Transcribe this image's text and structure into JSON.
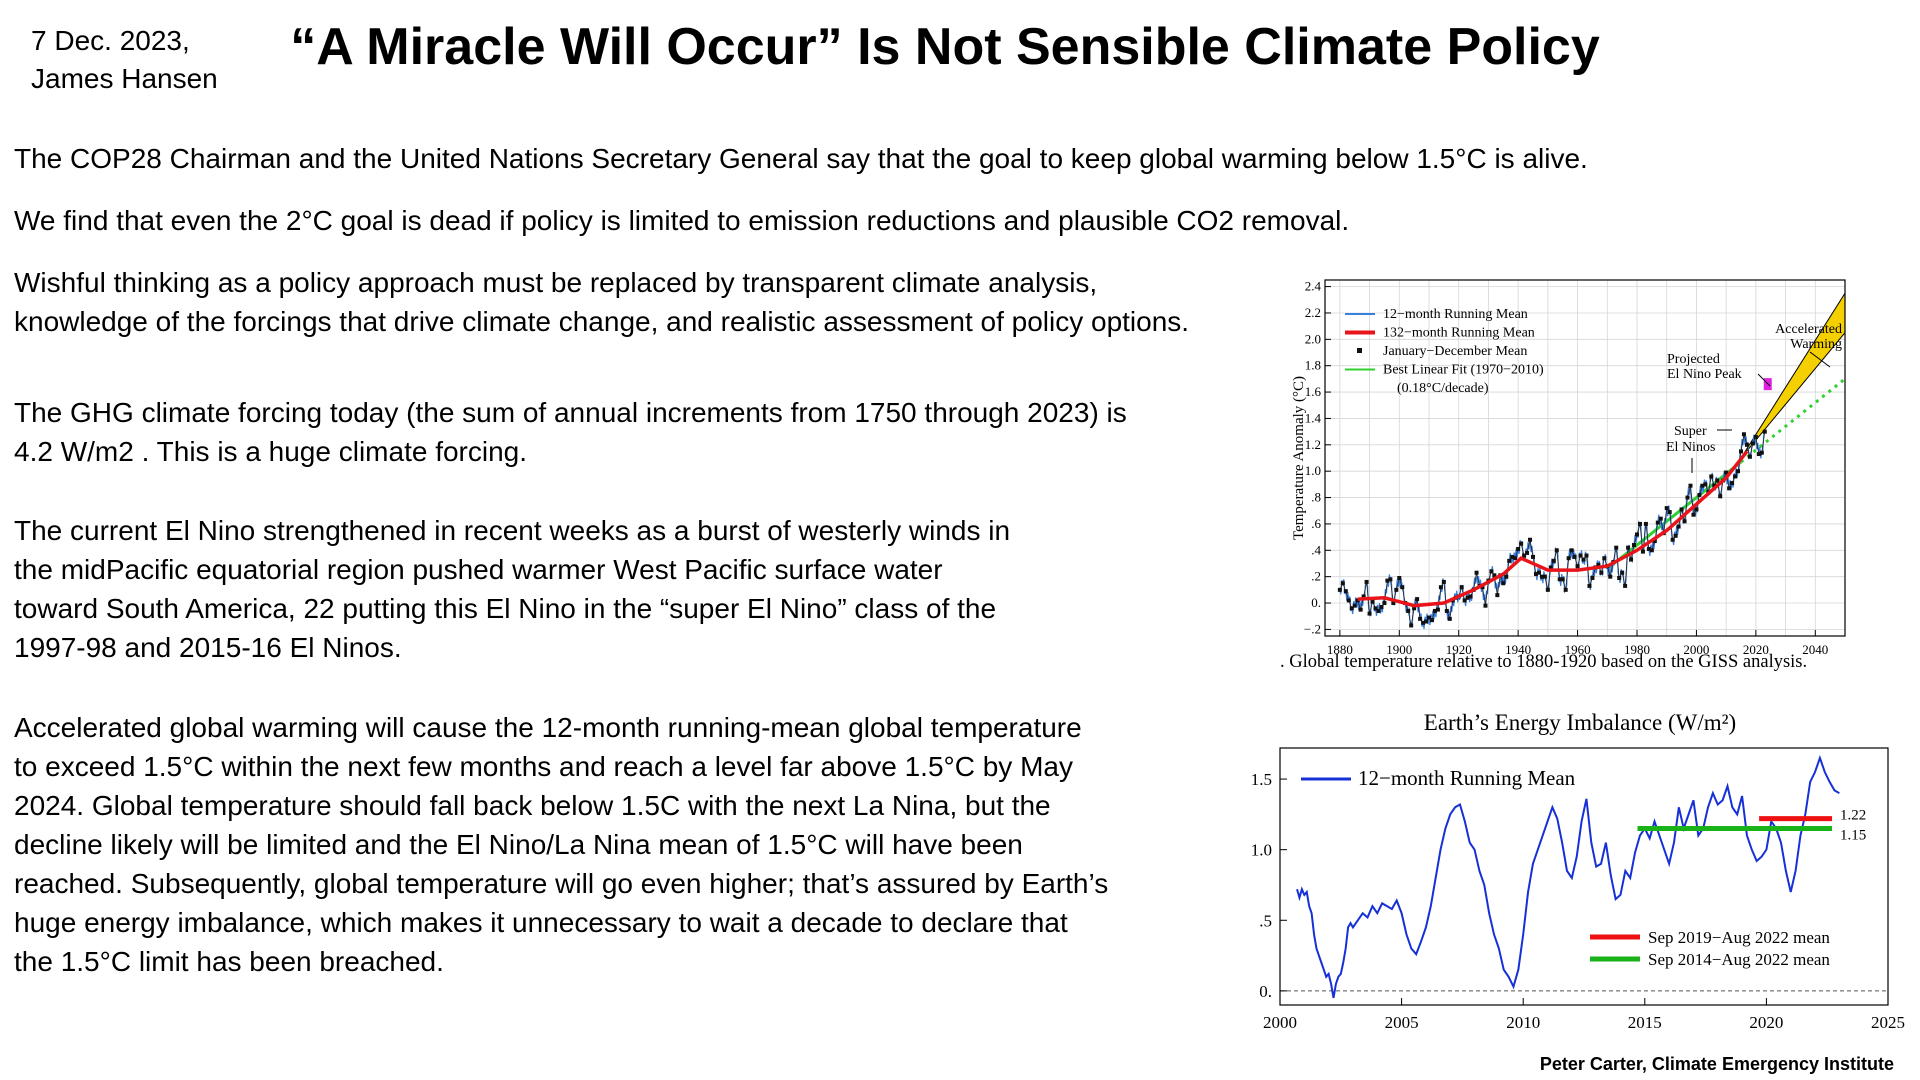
{
  "header": {
    "date": "7 Dec. 2023,",
    "author": "James Hansen",
    "title": "“A Miracle Will Occur” Is Not Sensible Climate Policy"
  },
  "body": {
    "p1": [
      "The COP28 Chairman and the United Nations Secretary General say that the goal to keep global warming below 1.5°C is alive."
    ],
    "p2": [
      "We find that even the 2°C goal is dead if policy is limited to emission reductions and plausible CO2 removal."
    ],
    "p3": [
      "Wishful thinking as a policy approach must be replaced by transparent climate analysis,",
      "knowledge of the forcings that drive climate change, and realistic assessment of policy options."
    ],
    "p4": [
      "The GHG climate forcing today (the sum of annual increments from 1750 through 2023) is",
      "4.2 W/m2 . This is a huge climate forcing."
    ],
    "p5": [
      "The current El Nino strengthened in recent weeks as a burst of westerly winds in",
      "the midPacific equatorial region pushed warmer West Pacific surface water",
      "toward South America, 22 putting this El Nino in the “super El Nino” class of the",
      "1997-98 and 2015-16 El Ninos."
    ],
    "p6": [
      "Accelerated global warming will cause the 12-month running-mean global temperature",
      "to exceed 1.5°C within the next few months and reach a level far above 1.5°C by May",
      "2024. Global temperature should fall back below 1.5C with the next La Nina, but the",
      "decline likely will be limited and the El Nino/La Nina mean of 1.5°C will have been",
      "reached. Subsequently, global temperature will go even higher; that’s assured by Earth’s",
      "huge energy imbalance, which makes it unnecessary to wait a decade to declare that",
      "the 1.5°C limit has been breached."
    ]
  },
  "caption": ". Global temperature relative to 1880-1920 based on the GISS analysis.",
  "credit": "Peter Carter, Climate Emergency Institute",
  "chart_data": [
    {
      "type": "line",
      "title": "",
      "ylabel": "Temperature Anomaly (°C)",
      "xlabel": "",
      "xlim": [
        1875,
        2050
      ],
      "ylim": [
        -0.25,
        2.45
      ],
      "x_ticks": [
        1880,
        1900,
        1920,
        1940,
        1960,
        1980,
        2000,
        2020,
        2040
      ],
      "y_ticks": [
        {
          "v": 2.4,
          "t": "2.4"
        },
        {
          "v": 2.2,
          "t": "2.2"
        },
        {
          "v": 2.0,
          "t": "2.0"
        },
        {
          "v": 1.8,
          "t": "1.8"
        },
        {
          "v": 1.6,
          "t": "1.6"
        },
        {
          "v": 1.4,
          "t": "1.4"
        },
        {
          "v": 1.2,
          "t": "1.2"
        },
        {
          "v": 1.0,
          "t": "1.0"
        },
        {
          "v": 0.8,
          "t": ".8"
        },
        {
          "v": 0.6,
          "t": ".6"
        },
        {
          "v": 0.4,
          "t": ".4"
        },
        {
          "v": 0.2,
          "t": ".2"
        },
        {
          "v": 0.0,
          "t": "0."
        },
        {
          "v": -0.2,
          "t": "−.2"
        }
      ],
      "grid": true,
      "legend": [
        {
          "label": "12−month Running Mean",
          "color": "#3a7fe0",
          "kind": "line"
        },
        {
          "label": "132−month Running Mean",
          "color": "#e8141a",
          "kind": "thick"
        },
        {
          "label": "January−December Mean",
          "color": "#111111",
          "kind": "square"
        },
        {
          "label": "Best Linear Fit (1970−2010)",
          "color": "#2fd12f",
          "kind": "line"
        },
        {
          "label": "(0.18°C/decade)",
          "color": "",
          "kind": "note"
        }
      ],
      "annotations": {
        "accelerated": [
          "Accelerated",
          "Warming"
        ],
        "projected": [
          "Projected",
          "El Nino Peak"
        ],
        "super": [
          "Super",
          "El Ninos"
        ]
      },
      "colors": {
        "fit": "#2fd12f",
        "running132": "#e8141a",
        "annual": "#111111",
        "running12": "#3a7fe0",
        "wedge": "#f5d000",
        "peak": "#e020e0"
      },
      "series": [
        {
          "name": "January−December Mean",
          "x": [
            1880,
            1881,
            1882,
            1883,
            1884,
            1885,
            1886,
            1887,
            1888,
            1889,
            1890,
            1891,
            1892,
            1893,
            1894,
            1895,
            1896,
            1897,
            1898,
            1899,
            1900,
            1901,
            1902,
            1903,
            1904,
            1905,
            1906,
            1907,
            1908,
            1909,
            1910,
            1911,
            1912,
            1913,
            1914,
            1915,
            1916,
            1917,
            1918,
            1919,
            1920,
            1921,
            1922,
            1923,
            1924,
            1925,
            1926,
            1927,
            1928,
            1929,
            1930,
            1931,
            1932,
            1933,
            1934,
            1935,
            1936,
            1937,
            1938,
            1939,
            1940,
            1941,
            1942,
            1943,
            1944,
            1945,
            1946,
            1947,
            1948,
            1949,
            1950,
            1951,
            1952,
            1953,
            1954,
            1955,
            1956,
            1957,
            1958,
            1959,
            1960,
            1961,
            1962,
            1963,
            1964,
            1965,
            1966,
            1967,
            1968,
            1969,
            1970,
            1971,
            1972,
            1973,
            1974,
            1975,
            1976,
            1977,
            1978,
            1979,
            1980,
            1981,
            1982,
            1983,
            1984,
            1985,
            1986,
            1987,
            1988,
            1989,
            1990,
            1991,
            1992,
            1993,
            1994,
            1995,
            1996,
            1997,
            1998,
            1999,
            2000,
            2001,
            2002,
            2003,
            2004,
            2005,
            2006,
            2007,
            2008,
            2009,
            2010,
            2011,
            2012,
            2013,
            2014,
            2015,
            2016,
            2017,
            2018,
            2019,
            2020,
            2021,
            2022,
            2023
          ],
          "values": [
            0.1,
            0.15,
            0.09,
            0.02,
            -0.04,
            -0.02,
            0.02,
            -0.05,
            0.05,
            0.16,
            -0.08,
            0.01,
            -0.04,
            -0.06,
            -0.03,
            0.0,
            0.17,
            0.18,
            0.0,
            0.1,
            0.19,
            0.12,
            0.0,
            -0.06,
            -0.17,
            -0.04,
            0.03,
            -0.12,
            -0.15,
            -0.14,
            -0.11,
            -0.13,
            -0.06,
            -0.05,
            0.12,
            0.16,
            -0.06,
            -0.12,
            0.02,
            0.04,
            0.05,
            0.12,
            0.02,
            0.04,
            0.05,
            0.1,
            0.23,
            0.13,
            0.12,
            -0.02,
            0.17,
            0.24,
            0.21,
            0.06,
            0.21,
            0.15,
            0.2,
            0.32,
            0.35,
            0.34,
            0.41,
            0.45,
            0.36,
            0.38,
            0.48,
            0.35,
            0.22,
            0.23,
            0.2,
            0.2,
            0.1,
            0.27,
            0.32,
            0.4,
            0.18,
            0.18,
            0.1,
            0.34,
            0.4,
            0.35,
            0.28,
            0.36,
            0.33,
            0.36,
            0.13,
            0.19,
            0.27,
            0.29,
            0.23,
            0.34,
            0.28,
            0.2,
            0.31,
            0.42,
            0.19,
            0.23,
            0.13,
            0.42,
            0.33,
            0.44,
            0.52,
            0.6,
            0.39,
            0.6,
            0.41,
            0.4,
            0.47,
            0.61,
            0.64,
            0.53,
            0.72,
            0.69,
            0.48,
            0.51,
            0.58,
            0.71,
            0.62,
            0.8,
            0.89,
            0.67,
            0.71,
            0.82,
            0.89,
            0.9,
            0.84,
            0.96,
            0.89,
            0.93,
            0.81,
            0.93,
            0.99,
            0.87,
            0.91,
            0.96,
            1.0,
            1.15,
            1.28,
            1.2,
            1.11,
            1.21,
            1.26,
            1.13,
            1.14,
            1.3
          ]
        },
        {
          "name": "132−month Running Mean",
          "x": [
            1886,
            1895,
            1905,
            1915,
            1925,
            1935,
            1941,
            1950,
            1960,
            1970,
            1980,
            1990,
            2000,
            2010,
            2017
          ],
          "values": [
            0.03,
            0.04,
            -0.02,
            0.0,
            0.1,
            0.22,
            0.34,
            0.25,
            0.25,
            0.28,
            0.4,
            0.55,
            0.75,
            0.95,
            1.15
          ]
        },
        {
          "name": "Best Linear Fit (1970−2010)",
          "x": [
            1970,
            2050
          ],
          "values": [
            0.26,
            1.7
          ]
        },
        {
          "name": "Accelerated Warming",
          "x": [
            2015,
            2050
          ],
          "upper": [
            1.1,
            2.35
          ],
          "lower": [
            1.1,
            2.05
          ]
        },
        {
          "name": "Projected El Nino Peak",
          "x": [
            2024
          ],
          "values": [
            1.66
          ]
        }
      ]
    },
    {
      "type": "line",
      "title": "Earth’s Energy Imbalance (W/m²)",
      "xlabel": "",
      "ylabel": "",
      "xlim": [
        2000,
        2025
      ],
      "ylim": [
        -0.1,
        1.72
      ],
      "x_ticks": [
        2000,
        2005,
        2010,
        2015,
        2020,
        2025
      ],
      "y_ticks": [
        {
          "v": 1.5,
          "t": "1.5"
        },
        {
          "v": 1.0,
          "t": "1.0"
        },
        {
          "v": 0.5,
          "t": ".5"
        },
        {
          "v": 0.0,
          "t": "0."
        }
      ],
      "grid": false,
      "legend": [
        {
          "label": "12−month Running Mean",
          "color": "#1630d8"
        },
        {
          "label": "Sep 2019−Aug 2022 mean",
          "color": "#ee1111"
        },
        {
          "label": "Sep 2014−Aug 2022 mean",
          "color": "#19b319"
        }
      ],
      "colors": {
        "line": "#1630d8",
        "red": "#ee1111",
        "green": "#19b319"
      },
      "series": [
        {
          "name": "12−month Running Mean",
          "x": [
            2000.7,
            2000.8,
            2000.9,
            2001.0,
            2001.1,
            2001.2,
            2001.3,
            2001.4,
            2001.5,
            2001.6,
            2001.7,
            2001.8,
            2001.9,
            2002.0,
            2002.1,
            2002.2,
            2002.3,
            2002.4,
            2002.5,
            2002.6,
            2002.7,
            2002.8,
            2002.9,
            2003.0,
            2003.2,
            2003.4,
            2003.6,
            2003.8,
            2004.0,
            2004.2,
            2004.4,
            2004.6,
            2004.8,
            2005.0,
            2005.2,
            2005.4,
            2005.6,
            2005.8,
            2006.0,
            2006.2,
            2006.4,
            2006.6,
            2006.8,
            2007.0,
            2007.2,
            2007.4,
            2007.6,
            2007.8,
            2008.0,
            2008.2,
            2008.4,
            2008.6,
            2008.8,
            2009.0,
            2009.2,
            2009.4,
            2009.6,
            2009.8,
            2010.0,
            2010.2,
            2010.4,
            2010.6,
            2010.8,
            2011.0,
            2011.2,
            2011.4,
            2011.6,
            2011.8,
            2012.0,
            2012.2,
            2012.4,
            2012.6,
            2012.8,
            2013.0,
            2013.2,
            2013.4,
            2013.6,
            2013.8,
            2014.0,
            2014.2,
            2014.4,
            2014.6,
            2014.8,
            2015.0,
            2015.2,
            2015.4,
            2015.6,
            2015.8,
            2016.0,
            2016.2,
            2016.4,
            2016.6,
            2016.8,
            2017.0,
            2017.2,
            2017.4,
            2017.6,
            2017.8,
            2018.0,
            2018.2,
            2018.4,
            2018.6,
            2018.8,
            2019.0,
            2019.2,
            2019.4,
            2019.6,
            2019.8,
            2020.0,
            2020.2,
            2020.4,
            2020.6,
            2020.8,
            2021.0,
            2021.2,
            2021.4,
            2021.6,
            2021.8,
            2022.0,
            2022.2,
            2022.4,
            2022.6,
            2022.8,
            2023.0
          ],
          "values": [
            0.72,
            0.66,
            0.72,
            0.68,
            0.7,
            0.6,
            0.55,
            0.4,
            0.3,
            0.25,
            0.2,
            0.15,
            0.1,
            0.12,
            0.05,
            -0.05,
            0.05,
            0.1,
            0.12,
            0.2,
            0.3,
            0.45,
            0.48,
            0.45,
            0.5,
            0.55,
            0.52,
            0.6,
            0.55,
            0.62,
            0.6,
            0.58,
            0.64,
            0.55,
            0.4,
            0.3,
            0.26,
            0.35,
            0.45,
            0.6,
            0.8,
            1.0,
            1.15,
            1.25,
            1.3,
            1.32,
            1.2,
            1.05,
            1.0,
            0.85,
            0.75,
            0.55,
            0.4,
            0.3,
            0.15,
            0.1,
            0.03,
            0.15,
            0.4,
            0.7,
            0.9,
            1.0,
            1.1,
            1.2,
            1.3,
            1.22,
            1.05,
            0.85,
            0.8,
            0.95,
            1.2,
            1.36,
            1.05,
            0.88,
            0.9,
            1.05,
            0.82,
            0.65,
            0.68,
            0.85,
            0.8,
            0.98,
            1.1,
            1.15,
            1.08,
            1.2,
            1.1,
            1.0,
            0.9,
            1.05,
            1.3,
            1.15,
            1.25,
            1.35,
            1.1,
            1.15,
            1.3,
            1.4,
            1.32,
            1.35,
            1.45,
            1.3,
            1.25,
            1.38,
            1.1,
            1.0,
            0.92,
            0.95,
            1.0,
            1.2,
            1.15,
            1.05,
            0.85,
            0.7,
            0.85,
            1.1,
            1.25,
            1.48,
            1.55,
            1.65,
            1.55,
            1.48,
            1.42,
            1.4
          ]
        },
        {
          "name": "Sep 2019−Aug 2022 mean",
          "x": [
            2019.7,
            2022.7
          ],
          "values": [
            1.22,
            1.22
          ],
          "label": "1.22"
        },
        {
          "name": "Sep 2014−Aug 2022 mean",
          "x": [
            2014.7,
            2022.7
          ],
          "values": [
            1.15,
            1.15
          ],
          "label": "1.15"
        }
      ]
    }
  ]
}
